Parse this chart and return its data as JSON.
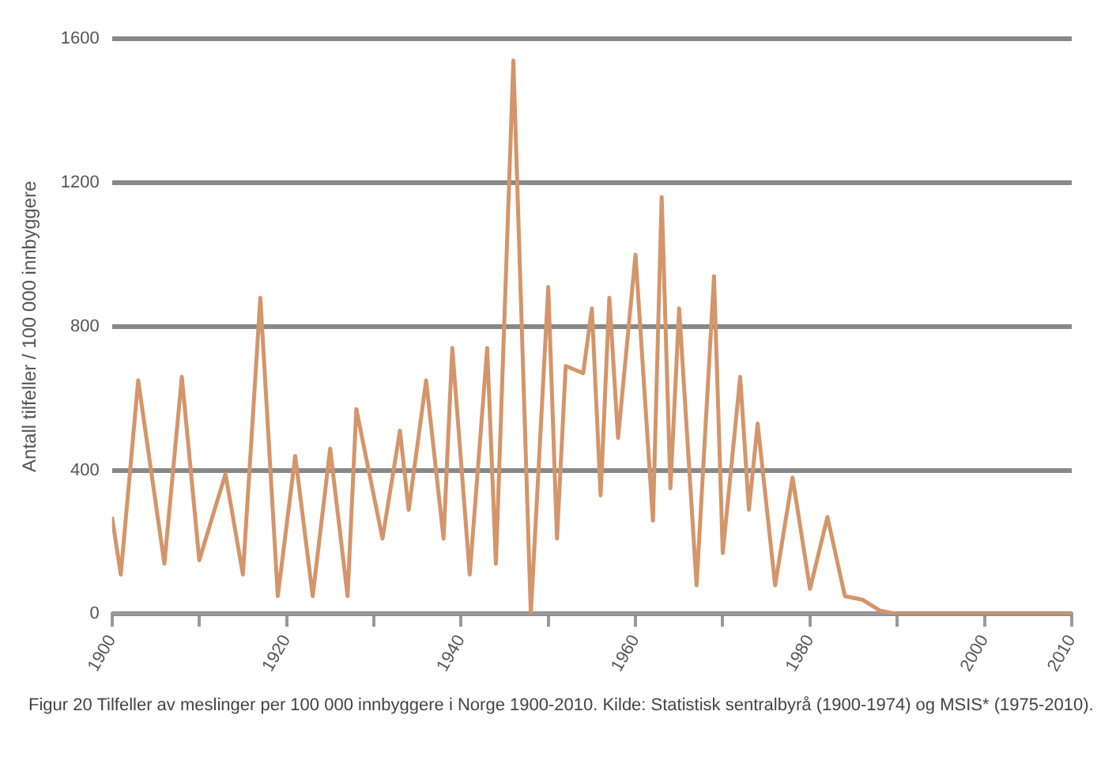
{
  "chart_data": {
    "type": "line",
    "ylabel": "Antall tilfeller / 100 000 innbyggere",
    "x": [
      1900,
      1901,
      1903,
      1906,
      1908,
      1910,
      1913,
      1915,
      1917,
      1919,
      1921,
      1923,
      1925,
      1927,
      1928,
      1931,
      1933,
      1934,
      1936,
      1938,
      1939,
      1941,
      1943,
      1944,
      1946,
      1948,
      1950,
      1951,
      1952,
      1954,
      1955,
      1956,
      1957,
      1958,
      1960,
      1962,
      1963,
      1964,
      1965,
      1967,
      1969,
      1970,
      1972,
      1973,
      1974,
      1976,
      1978,
      1980,
      1982,
      1984,
      1986,
      1988,
      1990,
      2000,
      2010
    ],
    "series": [
      {
        "color": "#d4956a",
        "values": [
          270,
          110,
          650,
          140,
          660,
          150,
          390,
          110,
          880,
          50,
          440,
          50,
          460,
          50,
          570,
          210,
          510,
          290,
          650,
          210,
          740,
          110,
          740,
          140,
          1540,
          0,
          910,
          210,
          690,
          670,
          850,
          330,
          880,
          490,
          1000,
          260,
          1160,
          350,
          850,
          80,
          940,
          170,
          660,
          290,
          530,
          80,
          380,
          70,
          270,
          50,
          40,
          10,
          0,
          0,
          0
        ]
      }
    ],
    "xlim": [
      1900,
      2010
    ],
    "xticks": [
      1900,
      {
        "value": 1910,
        "label": null
      },
      1920,
      {
        "value": 1930,
        "label": null
      },
      1940,
      {
        "value": 1950,
        "label": null
      },
      1960,
      {
        "value": 1970,
        "label": null
      },
      1980,
      {
        "value": 1990,
        "label": null
      },
      2000,
      2010
    ],
    "ylim": [
      0,
      1600
    ],
    "yticks": [
      0,
      400,
      800,
      1200,
      1600
    ],
    "grid": "y",
    "marker": "none",
    "line_style": "solid",
    "annotations": [
      "Figur 20 Tilfeller av meslinger per 100 000 innbyggere i Norge 1900-2010. Kilde: Statistisk sentralbyrå (1900-1974) og MSIS* (1975-2010)."
    ]
  }
}
